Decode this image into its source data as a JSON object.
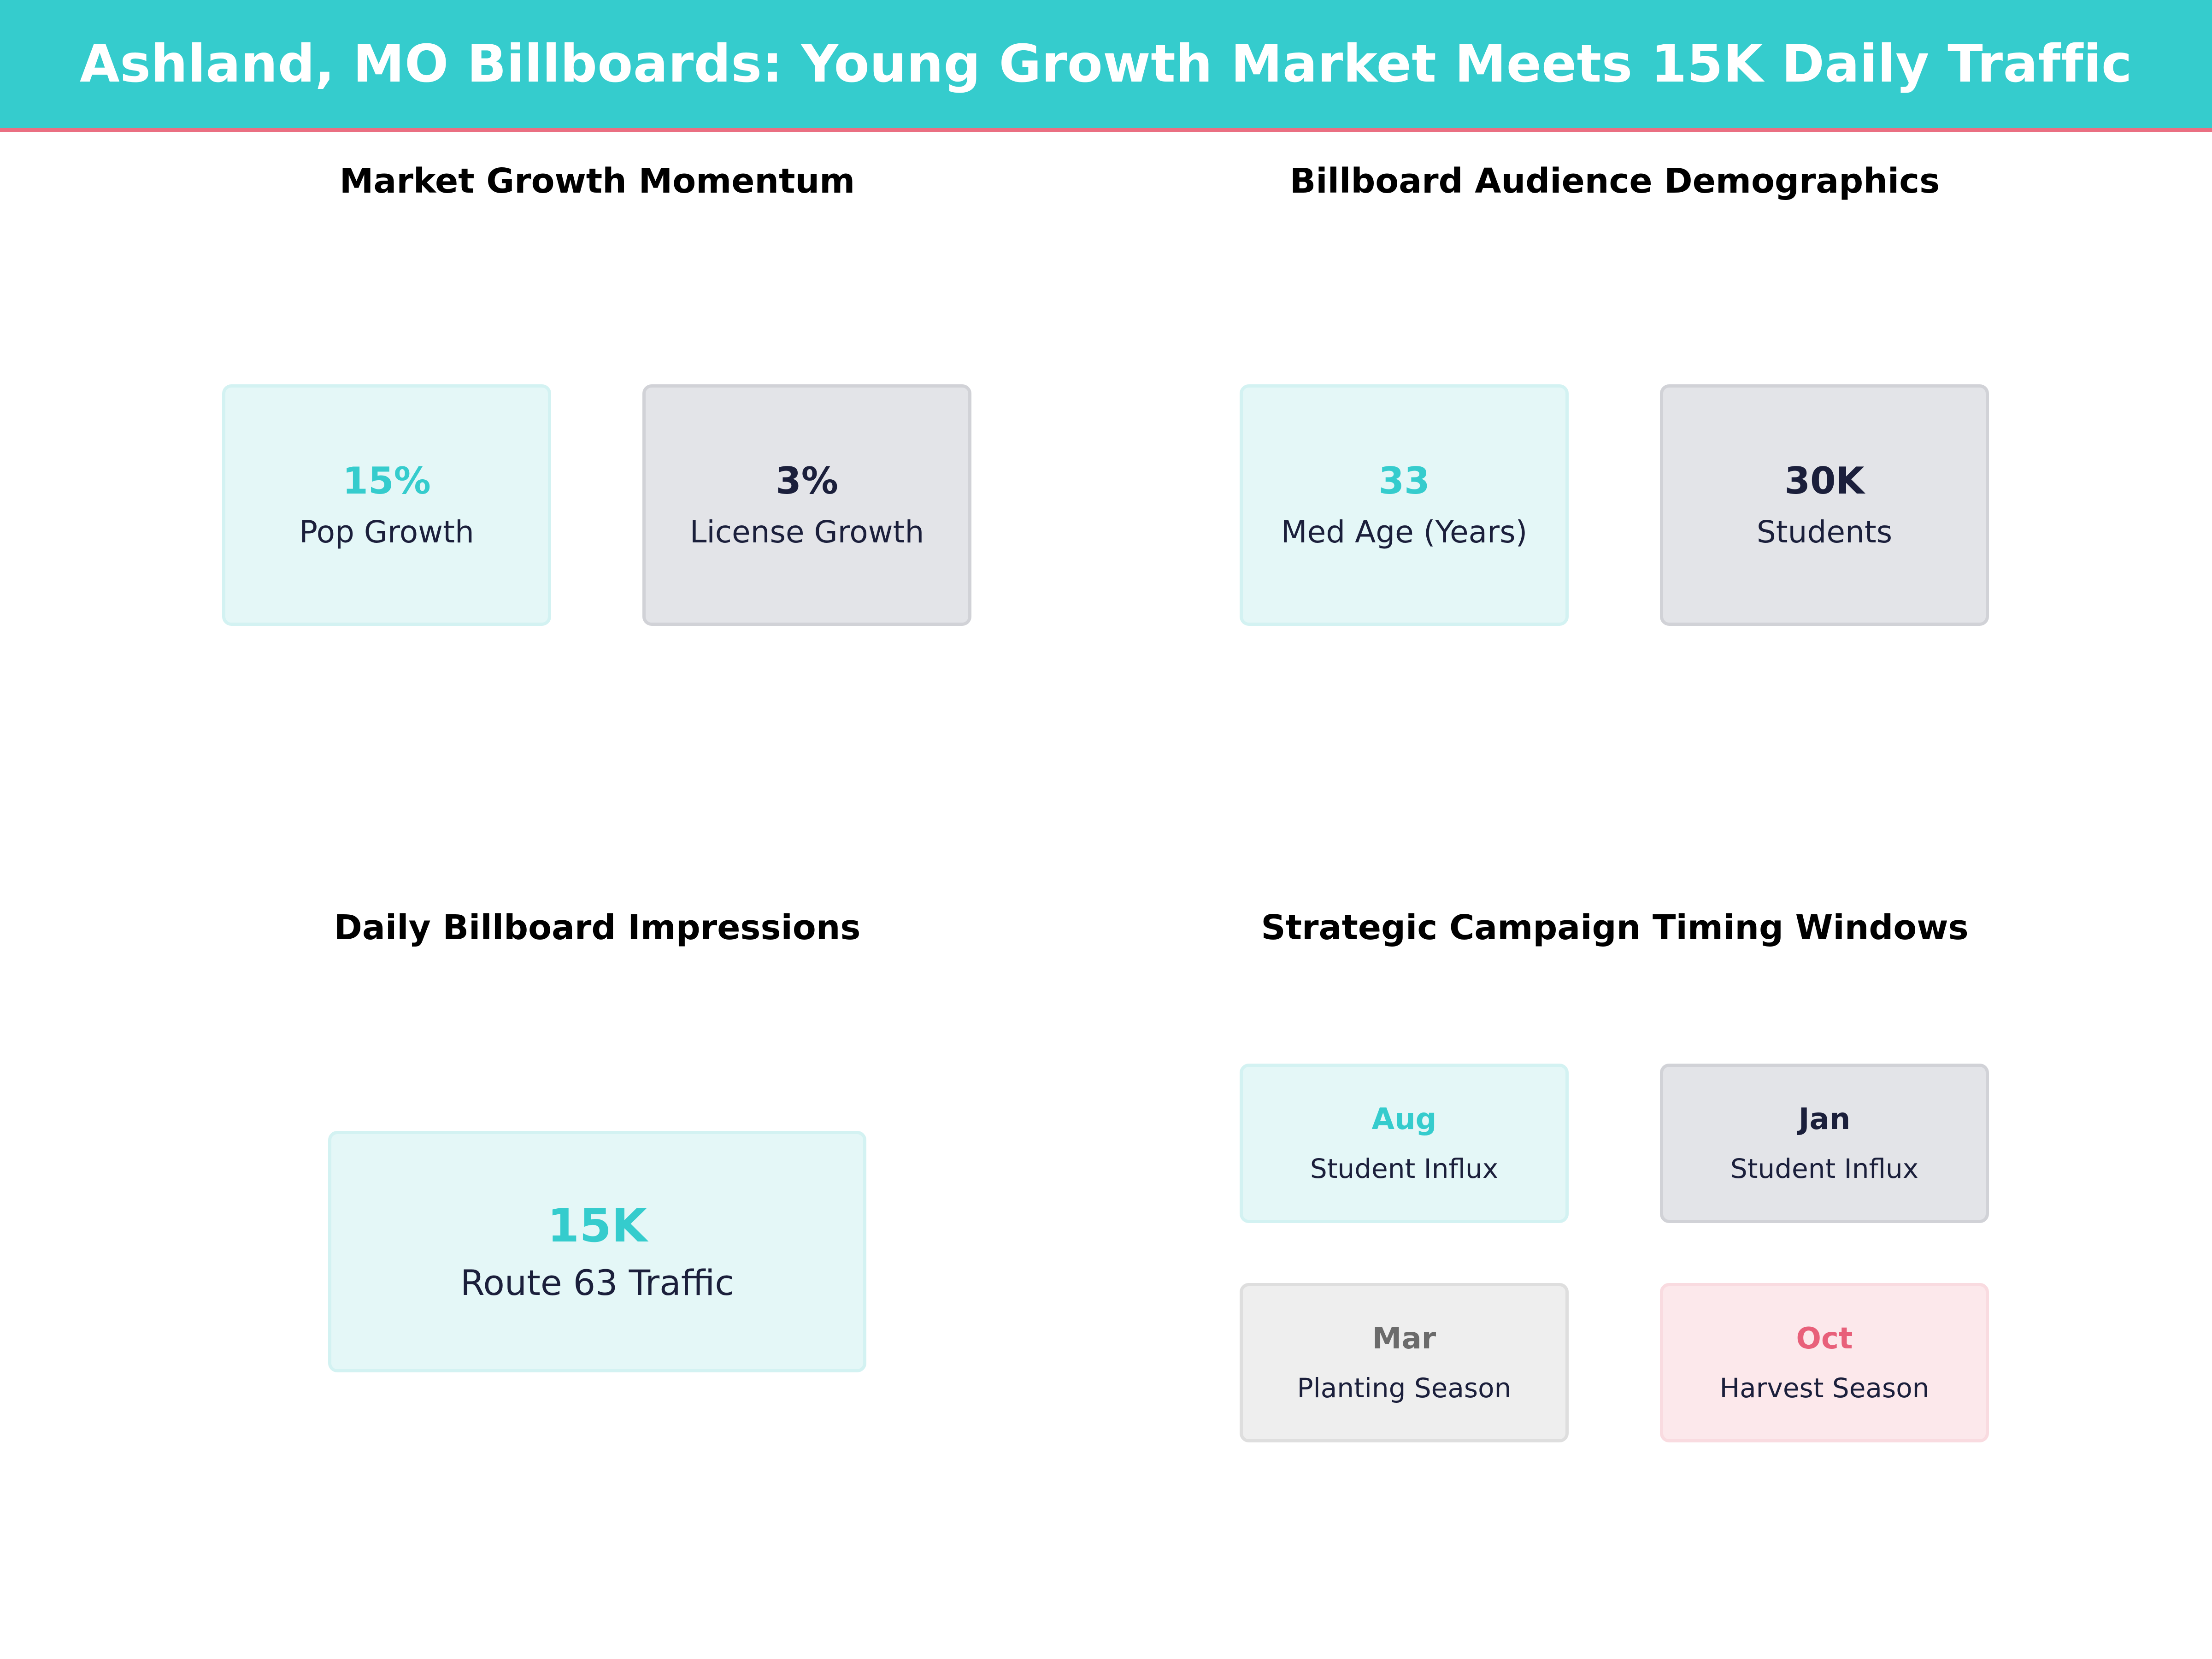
{
  "header": {
    "title": "Ashland, MO Billboards: Young Growth Market Meets 15K Daily Traffic",
    "background_color": "#35cccd",
    "accent_line_color": "#ea6f82"
  },
  "palette": {
    "teal": "#35cccd",
    "navy": "#1b1f3b",
    "gray": "#6b6b6b",
    "pink": "#e8607a"
  },
  "growth": {
    "title": "Market Growth Momentum",
    "cards": [
      {
        "value": "15%",
        "label": "Pop Growth",
        "tone": "teal"
      },
      {
        "value": "3%",
        "label": "License Growth",
        "tone": "navy"
      }
    ]
  },
  "demographics": {
    "title": "Billboard Audience Demographics",
    "cards": [
      {
        "value": "33",
        "label": "Med Age (Years)",
        "tone": "teal"
      },
      {
        "value": "30K",
        "label": "Students",
        "tone": "navy"
      }
    ]
  },
  "impressions": {
    "title": "Daily Billboard Impressions",
    "card": {
      "value": "15K",
      "label": "Route 63 Traffic",
      "tone": "teal"
    }
  },
  "timing": {
    "title": "Strategic Campaign Timing Windows",
    "cards": [
      {
        "month": "Aug",
        "label": "Student Influx",
        "tone": "teal"
      },
      {
        "month": "Jan",
        "label": "Student Influx",
        "tone": "navy"
      },
      {
        "month": "Mar",
        "label": "Planting Season",
        "tone": "gray"
      },
      {
        "month": "Oct",
        "label": "Harvest Season",
        "tone": "pink"
      }
    ]
  }
}
